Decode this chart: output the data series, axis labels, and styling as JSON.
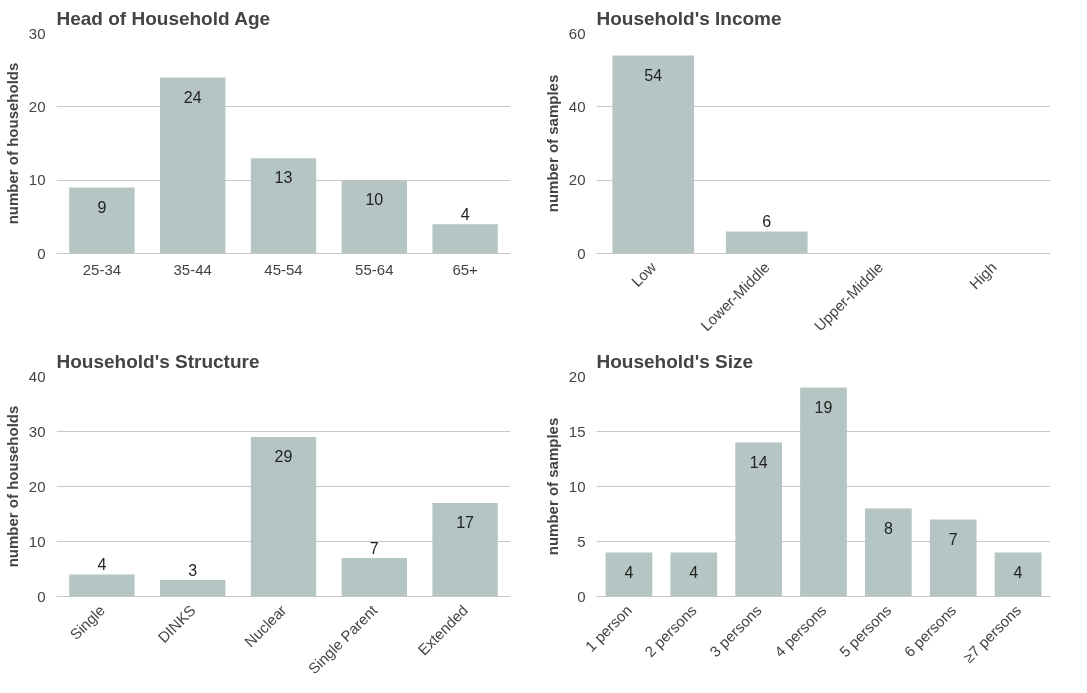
{
  "chart_data": [
    {
      "type": "bar",
      "title": "Head of Household Age",
      "ylabel": "number of households",
      "categories": [
        "25-34",
        "35-44",
        "45-54",
        "55-64",
        "65+"
      ],
      "values": [
        9,
        24,
        13,
        10,
        4
      ],
      "color": "#b4c5c3",
      "ylim": [
        0,
        30
      ],
      "yticks": [
        0,
        10,
        20,
        30
      ],
      "grid": "y",
      "data_labels": true
    },
    {
      "type": "bar",
      "title": "Household's Income",
      "ylabel": "number of samples",
      "categories": [
        "Low",
        "Lower-Middle",
        "Upper-Middle",
        "High"
      ],
      "values": [
        54,
        6,
        0,
        0
      ],
      "value_labels": [
        "54",
        "6",
        null,
        null
      ],
      "color": "#b4c5c3",
      "ylim": [
        0,
        60
      ],
      "yticks": [
        0,
        20,
        40,
        60
      ],
      "grid": "y"
    },
    {
      "type": "bar",
      "title": "Household's Structure",
      "ylabel": "number of households",
      "categories": [
        "Single",
        "DINKS",
        "Nuclear",
        "Single Parent",
        "Extended"
      ],
      "values": [
        4,
        3,
        29,
        7,
        17
      ],
      "color": "#b4c5c3",
      "ylim": [
        0,
        40
      ],
      "yticks": [
        0,
        10,
        20,
        30,
        40
      ],
      "grid": "y",
      "data_labels": true
    },
    {
      "type": "bar",
      "title": "Household's Size",
      "ylabel": "number of samples",
      "categories": [
        "1 person",
        "2 persons",
        "3 persons",
        "4 persons",
        "5 persons",
        "6 persons",
        "≥7 persons"
      ],
      "values": [
        4,
        4,
        14,
        19,
        8,
        7,
        4
      ],
      "color": "#b4c5c3",
      "ylim": [
        0,
        20
      ],
      "yticks": [
        0,
        5,
        10,
        15,
        20
      ],
      "grid": "y",
      "data_labels": true
    }
  ]
}
